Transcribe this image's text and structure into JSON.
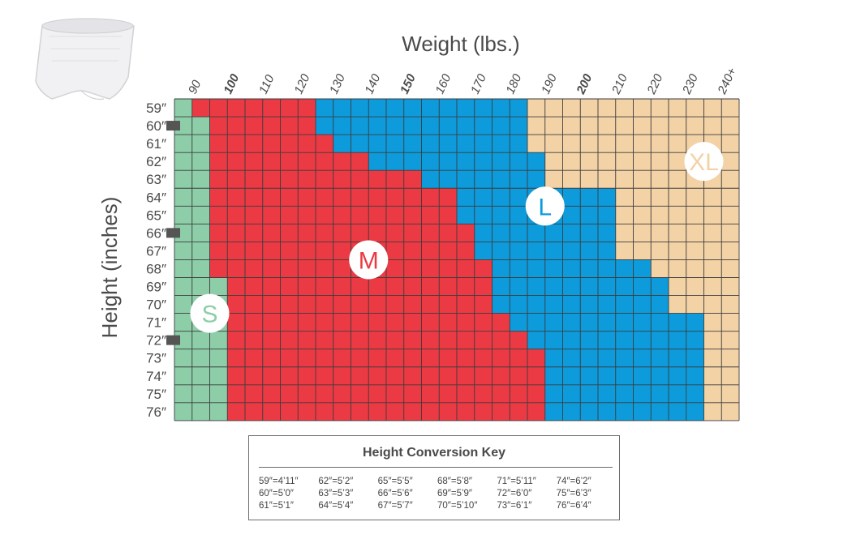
{
  "chart_data": {
    "type": "heatmap",
    "title": "Weight (lbs.)",
    "xlabel": "Weight (lbs.)",
    "ylabel": "Height (inches)",
    "x_ticks": [
      "90",
      "100",
      "110",
      "120",
      "130",
      "140",
      "150",
      "160",
      "170",
      "180",
      "190",
      "200",
      "210",
      "220",
      "230",
      "240+"
    ],
    "x_ticks_bold": [
      "100",
      "150",
      "200"
    ],
    "x_range": [
      85,
      245
    ],
    "y_ticks": [
      "59″",
      "60″",
      "61″",
      "62″",
      "63″",
      "64″",
      "65″",
      "66″",
      "67″",
      "68″",
      "69″",
      "70″",
      "71″",
      "72″",
      "73″",
      "74″",
      "75″",
      "76″"
    ],
    "y_marked": [
      "60″",
      "66″",
      "72″"
    ],
    "sizes": [
      {
        "label": "S",
        "color": "#8dcea9"
      },
      {
        "label": "M",
        "color": "#ec3a44"
      },
      {
        "label": "L",
        "color": "#0d9bdc"
      },
      {
        "label": "XL",
        "color": "#f3d2a6"
      }
    ],
    "size_bounds_lbs": [
      {
        "height": "59″",
        "s_max": 90,
        "m_max": 125,
        "l_max": 185
      },
      {
        "height": "60″",
        "s_max": 95,
        "m_max": 125,
        "l_max": 185
      },
      {
        "height": "61″",
        "s_max": 95,
        "m_max": 130,
        "l_max": 185
      },
      {
        "height": "62″",
        "s_max": 95,
        "m_max": 140,
        "l_max": 190
      },
      {
        "height": "63″",
        "s_max": 95,
        "m_max": 155,
        "l_max": 190
      },
      {
        "height": "64″",
        "s_max": 95,
        "m_max": 165,
        "l_max": 210
      },
      {
        "height": "65″",
        "s_max": 95,
        "m_max": 165,
        "l_max": 210
      },
      {
        "height": "66″",
        "s_max": 95,
        "m_max": 170,
        "l_max": 210
      },
      {
        "height": "67″",
        "s_max": 95,
        "m_max": 170,
        "l_max": 210
      },
      {
        "height": "68″",
        "s_max": 95,
        "m_max": 175,
        "l_max": 220
      },
      {
        "height": "69″",
        "s_max": 100,
        "m_max": 175,
        "l_max": 225
      },
      {
        "height": "70″",
        "s_max": 100,
        "m_max": 175,
        "l_max": 225
      },
      {
        "height": "71″",
        "s_max": 100,
        "m_max": 180,
        "l_max": 235
      },
      {
        "height": "72″",
        "s_max": 100,
        "m_max": 185,
        "l_max": 235
      },
      {
        "height": "73″",
        "s_max": 100,
        "m_max": 190,
        "l_max": 235
      },
      {
        "height": "74″",
        "s_max": 100,
        "m_max": 190,
        "l_max": 235
      },
      {
        "height": "75″",
        "s_max": 100,
        "m_max": 190,
        "l_max": 235
      },
      {
        "height": "76″",
        "s_max": 100,
        "m_max": 190,
        "l_max": 235
      }
    ],
    "badge_centers": {
      "S": {
        "weight_lbs": 95,
        "height_in": 70.5
      },
      "M": {
        "weight_lbs": 140,
        "height_in": 67.5
      },
      "L": {
        "weight_lbs": 190,
        "height_in": 64.5
      },
      "XL": {
        "weight_lbs": 235,
        "height_in": 62
      }
    }
  },
  "conversion_key": {
    "title": "Height Conversion Key",
    "entries": [
      "59″=4’11″",
      "60″=5’0″",
      "61″=5’1″",
      "62″=5’2″",
      "63″=5’3″",
      "64″=5’4″",
      "65″=5’5″",
      "66″=5’6″",
      "67″=5’7″",
      "68″=5’8″",
      "69″=5’9″",
      "70″=5’10″",
      "71″=5’11″",
      "72″=6’0″",
      "73″=6’1″",
      "74″=6’2″",
      "75″=6’3″",
      "76″=6’4″"
    ]
  },
  "product_image": {
    "icon": "protective-underwear-product-icon"
  }
}
